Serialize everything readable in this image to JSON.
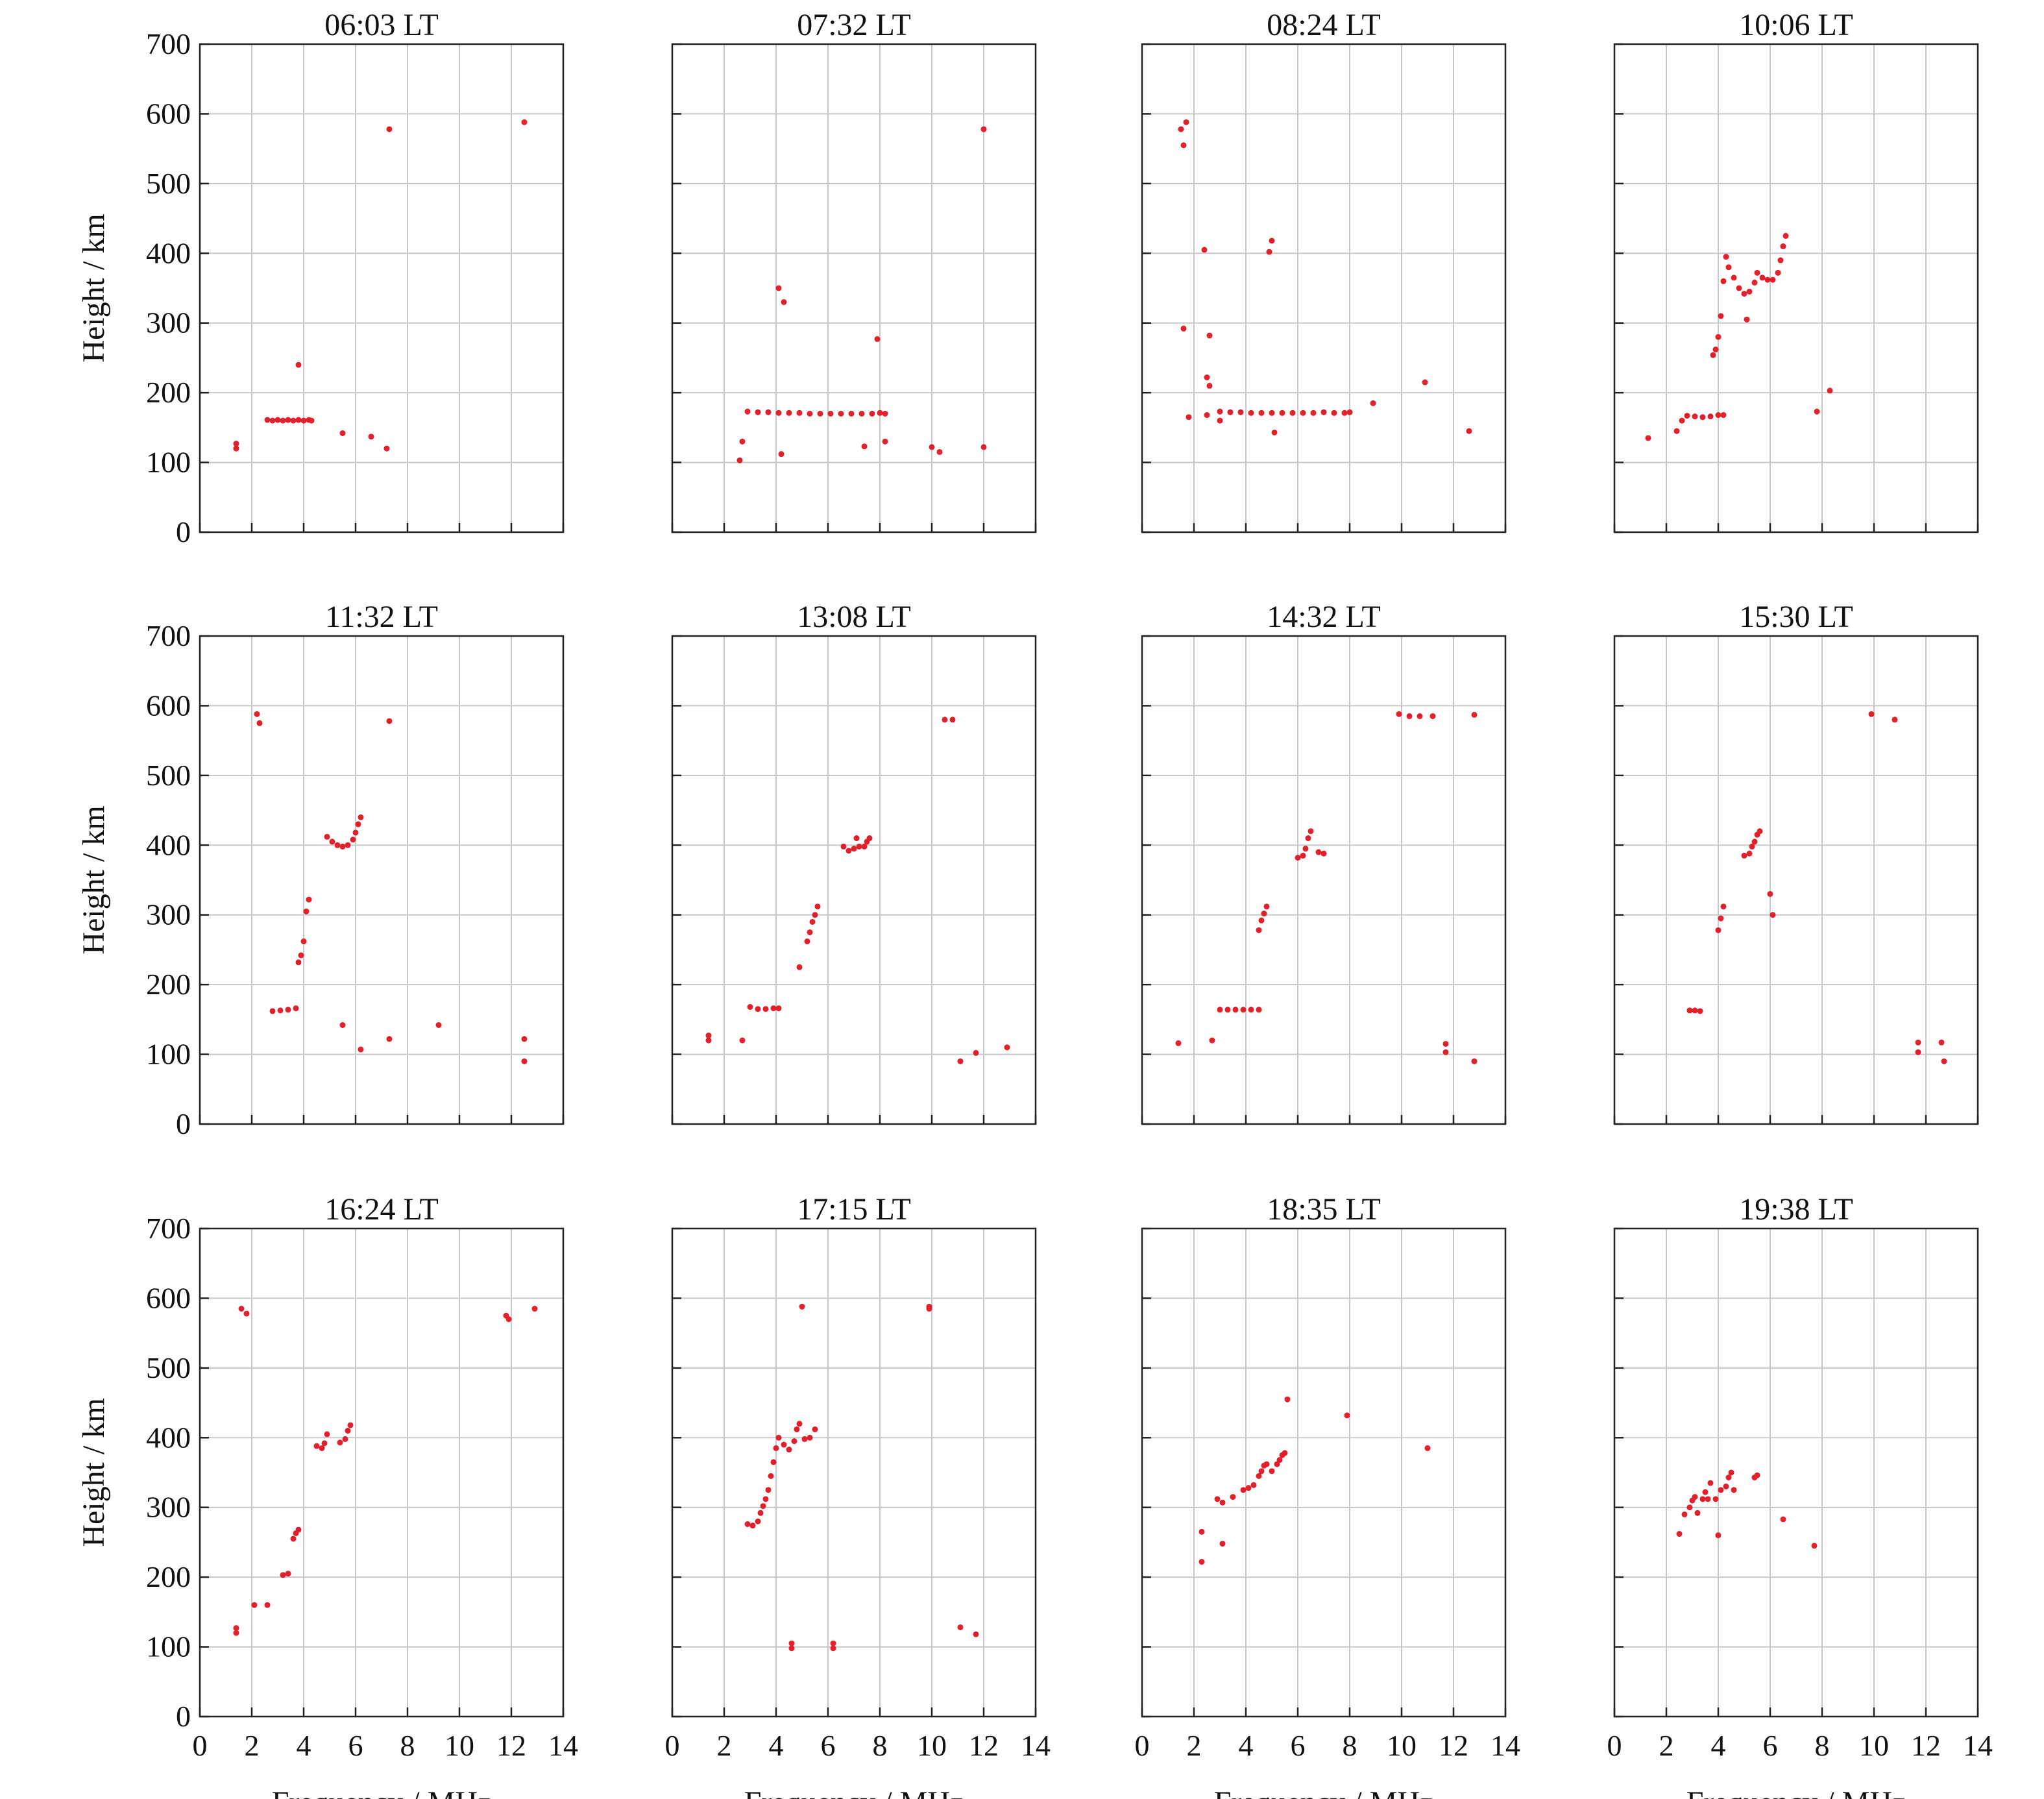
{
  "figure": {
    "ylabel": "Height / km",
    "xlabel": "Frequency / MHz",
    "xticks": [
      "0",
      "2",
      "4",
      "6",
      "8",
      "10",
      "12",
      "14"
    ],
    "yticks": [
      "0",
      "100",
      "200",
      "300",
      "400",
      "500",
      "600",
      "700"
    ],
    "point_color": "#e0202a",
    "grid_color": "#c8c8c8"
  },
  "chart_data": [
    {
      "type": "scatter",
      "title": "06:03 LT",
      "xlim": [
        0,
        14
      ],
      "ylim": [
        0,
        700
      ],
      "grid": true,
      "points": [
        [
          1.4,
          120
        ],
        [
          1.4,
          127
        ],
        [
          2.6,
          161
        ],
        [
          2.8,
          160
        ],
        [
          3.0,
          161
        ],
        [
          3.2,
          160
        ],
        [
          3.4,
          161
        ],
        [
          3.6,
          160
        ],
        [
          3.8,
          161
        ],
        [
          4.0,
          160
        ],
        [
          4.2,
          161
        ],
        [
          4.3,
          160
        ],
        [
          3.8,
          240
        ],
        [
          5.5,
          142
        ],
        [
          6.6,
          137
        ],
        [
          7.2,
          120
        ],
        [
          7.3,
          578
        ],
        [
          12.5,
          588
        ]
      ]
    },
    {
      "type": "scatter",
      "title": "07:32 LT",
      "xlim": [
        0,
        14
      ],
      "ylim": [
        0,
        700
      ],
      "grid": true,
      "points": [
        [
          2.9,
          173
        ],
        [
          3.3,
          172
        ],
        [
          3.7,
          172
        ],
        [
          4.1,
          171
        ],
        [
          4.5,
          171
        ],
        [
          4.9,
          171
        ],
        [
          5.3,
          170
        ],
        [
          5.7,
          170
        ],
        [
          6.1,
          170
        ],
        [
          6.5,
          170
        ],
        [
          6.9,
          170
        ],
        [
          7.3,
          170
        ],
        [
          7.7,
          170
        ],
        [
          8.0,
          171
        ],
        [
          8.2,
          170
        ],
        [
          4.1,
          350
        ],
        [
          4.3,
          330
        ],
        [
          7.9,
          277
        ],
        [
          2.6,
          103
        ],
        [
          2.7,
          130
        ],
        [
          4.2,
          112
        ],
        [
          7.4,
          123
        ],
        [
          8.2,
          130
        ],
        [
          10.0,
          122
        ],
        [
          10.3,
          115
        ],
        [
          12.0,
          578
        ],
        [
          12.0,
          122
        ]
      ]
    },
    {
      "type": "scatter",
      "title": "08:24 LT",
      "xlim": [
        0,
        14
      ],
      "ylim": [
        0,
        700
      ],
      "grid": true,
      "points": [
        [
          1.5,
          578
        ],
        [
          1.6,
          555
        ],
        [
          1.7,
          588
        ],
        [
          1.6,
          292
        ],
        [
          1.8,
          165
        ],
        [
          2.4,
          405
        ],
        [
          2.6,
          282
        ],
        [
          2.6,
          210
        ],
        [
          2.5,
          222
        ],
        [
          2.5,
          168
        ],
        [
          3.0,
          173
        ],
        [
          3.4,
          172
        ],
        [
          3.8,
          172
        ],
        [
          4.2,
          171
        ],
        [
          4.6,
          171
        ],
        [
          5.0,
          171
        ],
        [
          5.4,
          171
        ],
        [
          5.8,
          171
        ],
        [
          6.2,
          171
        ],
        [
          6.6,
          171
        ],
        [
          7.0,
          172
        ],
        [
          7.4,
          171
        ],
        [
          7.8,
          171
        ],
        [
          8.0,
          172
        ],
        [
          3.0,
          160
        ],
        [
          4.9,
          402
        ],
        [
          5.0,
          418
        ],
        [
          5.1,
          143
        ],
        [
          8.9,
          185
        ],
        [
          10.9,
          215
        ],
        [
          12.6,
          145
        ]
      ]
    },
    {
      "type": "scatter",
      "title": "10:06 LT",
      "xlim": [
        0,
        14
      ],
      "ylim": [
        0,
        700
      ],
      "grid": true,
      "points": [
        [
          1.3,
          135
        ],
        [
          2.4,
          145
        ],
        [
          2.6,
          160
        ],
        [
          2.8,
          167
        ],
        [
          3.1,
          166
        ],
        [
          3.4,
          165
        ],
        [
          3.7,
          166
        ],
        [
          4.0,
          168
        ],
        [
          4.2,
          168
        ],
        [
          3.8,
          254
        ],
        [
          3.9,
          262
        ],
        [
          4.0,
          280
        ],
        [
          4.1,
          310
        ],
        [
          4.2,
          360
        ],
        [
          4.3,
          395
        ],
        [
          4.4,
          380
        ],
        [
          4.6,
          365
        ],
        [
          4.8,
          350
        ],
        [
          5.0,
          342
        ],
        [
          5.2,
          345
        ],
        [
          5.4,
          358
        ],
        [
          5.5,
          372
        ],
        [
          5.7,
          365
        ],
        [
          5.9,
          362
        ],
        [
          6.1,
          362
        ],
        [
          6.3,
          372
        ],
        [
          6.4,
          390
        ],
        [
          6.5,
          410
        ],
        [
          6.6,
          425
        ],
        [
          5.1,
          305
        ],
        [
          7.8,
          173
        ],
        [
          8.3,
          203
        ]
      ]
    },
    {
      "type": "scatter",
      "title": "11:32 LT",
      "xlim": [
        0,
        14
      ],
      "ylim": [
        0,
        700
      ],
      "grid": true,
      "points": [
        [
          2.2,
          588
        ],
        [
          2.3,
          575
        ],
        [
          7.3,
          578
        ],
        [
          2.8,
          162
        ],
        [
          3.1,
          163
        ],
        [
          3.4,
          164
        ],
        [
          3.7,
          166
        ],
        [
          3.8,
          232
        ],
        [
          3.9,
          242
        ],
        [
          4.0,
          262
        ],
        [
          4.1,
          305
        ],
        [
          4.2,
          322
        ],
        [
          4.9,
          412
        ],
        [
          5.1,
          405
        ],
        [
          5.3,
          400
        ],
        [
          5.5,
          398
        ],
        [
          5.7,
          400
        ],
        [
          5.9,
          408
        ],
        [
          6.0,
          418
        ],
        [
          6.1,
          430
        ],
        [
          6.2,
          440
        ],
        [
          5.5,
          142
        ],
        [
          6.2,
          107
        ],
        [
          7.3,
          122
        ],
        [
          9.2,
          142
        ],
        [
          12.5,
          122
        ],
        [
          12.5,
          90
        ]
      ]
    },
    {
      "type": "scatter",
      "title": "13:08 LT",
      "xlim": [
        0,
        14
      ],
      "ylim": [
        0,
        700
      ],
      "grid": true,
      "points": [
        [
          1.4,
          120
        ],
        [
          1.4,
          127
        ],
        [
          2.7,
          120
        ],
        [
          3.0,
          168
        ],
        [
          3.3,
          165
        ],
        [
          3.6,
          165
        ],
        [
          3.9,
          166
        ],
        [
          4.1,
          166
        ],
        [
          4.9,
          225
        ],
        [
          5.2,
          262
        ],
        [
          5.3,
          275
        ],
        [
          5.4,
          290
        ],
        [
          5.5,
          300
        ],
        [
          5.6,
          312
        ],
        [
          6.6,
          398
        ],
        [
          6.8,
          392
        ],
        [
          7.0,
          395
        ],
        [
          7.1,
          410
        ],
        [
          7.2,
          398
        ],
        [
          7.4,
          398
        ],
        [
          7.5,
          405
        ],
        [
          7.6,
          410
        ],
        [
          10.5,
          580
        ],
        [
          10.8,
          580
        ],
        [
          11.1,
          90
        ],
        [
          11.7,
          102
        ],
        [
          12.9,
          110
        ]
      ]
    },
    {
      "type": "scatter",
      "title": "14:32 LT",
      "xlim": [
        0,
        14
      ],
      "ylim": [
        0,
        700
      ],
      "grid": true,
      "points": [
        [
          1.4,
          116
        ],
        [
          2.7,
          120
        ],
        [
          3.0,
          164
        ],
        [
          3.3,
          164
        ],
        [
          3.6,
          164
        ],
        [
          3.9,
          164
        ],
        [
          4.2,
          164
        ],
        [
          4.5,
          164
        ],
        [
          4.5,
          278
        ],
        [
          4.6,
          292
        ],
        [
          4.7,
          302
        ],
        [
          4.8,
          312
        ],
        [
          6.0,
          382
        ],
        [
          6.2,
          385
        ],
        [
          6.3,
          395
        ],
        [
          6.4,
          410
        ],
        [
          6.5,
          420
        ],
        [
          6.8,
          390
        ],
        [
          7.0,
          388
        ],
        [
          9.9,
          588
        ],
        [
          10.3,
          585
        ],
        [
          10.7,
          585
        ],
        [
          11.2,
          585
        ],
        [
          12.8,
          587
        ],
        [
          11.7,
          115
        ],
        [
          11.7,
          103
        ],
        [
          12.8,
          90
        ]
      ]
    },
    {
      "type": "scatter",
      "title": "15:30 LT",
      "xlim": [
        0,
        14
      ],
      "ylim": [
        0,
        700
      ],
      "grid": true,
      "points": [
        [
          2.9,
          163
        ],
        [
          3.1,
          163
        ],
        [
          3.3,
          162
        ],
        [
          4.0,
          278
        ],
        [
          4.1,
          295
        ],
        [
          4.2,
          312
        ],
        [
          5.0,
          385
        ],
        [
          5.2,
          388
        ],
        [
          5.3,
          398
        ],
        [
          5.4,
          405
        ],
        [
          5.5,
          415
        ],
        [
          5.6,
          420
        ],
        [
          6.0,
          330
        ],
        [
          6.1,
          300
        ],
        [
          9.9,
          588
        ],
        [
          10.8,
          580
        ],
        [
          11.7,
          117
        ],
        [
          11.7,
          103
        ],
        [
          12.6,
          117
        ],
        [
          12.7,
          90
        ]
      ]
    },
    {
      "type": "scatter",
      "title": "16:24 LT",
      "xlim": [
        0,
        14
      ],
      "ylim": [
        0,
        700
      ],
      "grid": true,
      "points": [
        [
          1.4,
          120
        ],
        [
          1.4,
          127
        ],
        [
          1.6,
          585
        ],
        [
          1.8,
          578
        ],
        [
          2.1,
          160
        ],
        [
          2.6,
          160
        ],
        [
          3.2,
          203
        ],
        [
          3.4,
          205
        ],
        [
          3.6,
          255
        ],
        [
          3.7,
          263
        ],
        [
          3.8,
          268
        ],
        [
          4.5,
          388
        ],
        [
          4.7,
          385
        ],
        [
          4.8,
          392
        ],
        [
          4.9,
          405
        ],
        [
          5.4,
          393
        ],
        [
          5.6,
          398
        ],
        [
          5.7,
          410
        ],
        [
          5.8,
          418
        ],
        [
          11.8,
          575
        ],
        [
          11.9,
          570
        ],
        [
          12.9,
          585
        ]
      ]
    },
    {
      "type": "scatter",
      "title": "17:15 LT",
      "xlim": [
        0,
        14
      ],
      "ylim": [
        0,
        700
      ],
      "grid": true,
      "points": [
        [
          2.9,
          276
        ],
        [
          3.1,
          274
        ],
        [
          3.3,
          280
        ],
        [
          3.4,
          292
        ],
        [
          3.5,
          302
        ],
        [
          3.6,
          312
        ],
        [
          3.7,
          325
        ],
        [
          3.8,
          345
        ],
        [
          3.9,
          365
        ],
        [
          4.0,
          385
        ],
        [
          4.1,
          400
        ],
        [
          4.3,
          390
        ],
        [
          4.5,
          383
        ],
        [
          4.7,
          395
        ],
        [
          4.8,
          412
        ],
        [
          4.9,
          420
        ],
        [
          5.1,
          398
        ],
        [
          5.3,
          400
        ],
        [
          5.5,
          412
        ],
        [
          4.6,
          105
        ],
        [
          4.6,
          98
        ],
        [
          5.0,
          588
        ],
        [
          6.2,
          105
        ],
        [
          6.2,
          98
        ],
        [
          9.9,
          588
        ],
        [
          9.9,
          585
        ],
        [
          11.1,
          128
        ],
        [
          11.7,
          118
        ]
      ]
    },
    {
      "type": "scatter",
      "title": "18:35 LT",
      "xlim": [
        0,
        14
      ],
      "ylim": [
        0,
        700
      ],
      "grid": true,
      "points": [
        [
          2.3,
          265
        ],
        [
          2.3,
          222
        ],
        [
          2.9,
          312
        ],
        [
          3.1,
          307
        ],
        [
          3.1,
          248
        ],
        [
          3.5,
          315
        ],
        [
          3.9,
          325
        ],
        [
          4.1,
          328
        ],
        [
          4.3,
          332
        ],
        [
          4.5,
          345
        ],
        [
          4.6,
          352
        ],
        [
          4.7,
          360
        ],
        [
          4.8,
          362
        ],
        [
          5.0,
          352
        ],
        [
          5.2,
          362
        ],
        [
          5.3,
          368
        ],
        [
          5.4,
          375
        ],
        [
          5.5,
          378
        ],
        [
          5.6,
          455
        ],
        [
          7.9,
          432
        ],
        [
          11.0,
          385
        ]
      ]
    },
    {
      "type": "scatter",
      "title": "19:38 LT",
      "xlim": [
        0,
        14
      ],
      "ylim": [
        0,
        700
      ],
      "grid": true,
      "points": [
        [
          2.5,
          262
        ],
        [
          2.7,
          290
        ],
        [
          2.9,
          300
        ],
        [
          3.0,
          310
        ],
        [
          3.1,
          315
        ],
        [
          3.2,
          292
        ],
        [
          3.4,
          312
        ],
        [
          3.5,
          322
        ],
        [
          3.6,
          312
        ],
        [
          3.7,
          335
        ],
        [
          3.9,
          312
        ],
        [
          4.0,
          260
        ],
        [
          4.1,
          325
        ],
        [
          4.3,
          330
        ],
        [
          4.4,
          343
        ],
        [
          4.5,
          350
        ],
        [
          4.6,
          325
        ],
        [
          5.4,
          343
        ],
        [
          5.5,
          346
        ],
        [
          6.5,
          283
        ],
        [
          7.7,
          245
        ]
      ]
    }
  ]
}
